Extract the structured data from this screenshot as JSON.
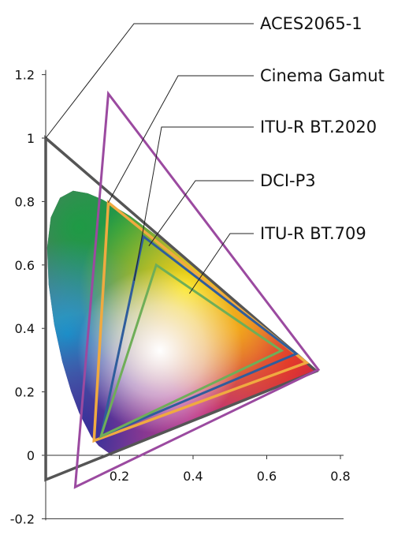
{
  "chart_data": {
    "type": "scatter",
    "title": "",
    "xlabel": "",
    "ylabel": "",
    "xlim": [
      0,
      0.8
    ],
    "ylim": [
      -0.2,
      1.2
    ],
    "x_ticks": [
      {
        "value": 0.2,
        "label": "0.2"
      },
      {
        "value": 0.4,
        "label": "0.4"
      },
      {
        "value": 0.6,
        "label": "0.6"
      },
      {
        "value": 0.8,
        "label": "0.8"
      }
    ],
    "y_ticks": [
      {
        "value": -0.2,
        "label": "-0.2"
      },
      {
        "value": 0,
        "label": "0"
      },
      {
        "value": 0.2,
        "label": "0.2"
      },
      {
        "value": 0.4,
        "label": "0.4"
      },
      {
        "value": 0.6,
        "label": "0.6"
      },
      {
        "value": 0.8,
        "label": "0.8"
      },
      {
        "value": 1,
        "label": "1"
      },
      {
        "value": 1.2,
        "label": "1.2"
      }
    ],
    "locus": [
      [
        0.1741,
        0.005
      ],
      [
        0.144,
        0.03
      ],
      [
        0.124,
        0.058
      ],
      [
        0.091,
        0.133
      ],
      [
        0.069,
        0.201
      ],
      [
        0.045,
        0.295
      ],
      [
        0.023,
        0.413
      ],
      [
        0.008,
        0.538
      ],
      [
        0.0039,
        0.655
      ],
      [
        0.0139,
        0.75
      ],
      [
        0.0389,
        0.812
      ],
      [
        0.0743,
        0.834
      ],
      [
        0.1142,
        0.826
      ],
      [
        0.1547,
        0.806
      ],
      [
        0.2296,
        0.754
      ],
      [
        0.3016,
        0.692
      ],
      [
        0.3731,
        0.625
      ],
      [
        0.4441,
        0.555
      ],
      [
        0.5125,
        0.487
      ],
      [
        0.5752,
        0.424
      ],
      [
        0.627,
        0.372
      ],
      [
        0.6658,
        0.334
      ],
      [
        0.6915,
        0.308
      ],
      [
        0.7079,
        0.292
      ],
      [
        0.719,
        0.281
      ],
      [
        0.7347,
        0.2653
      ]
    ],
    "series": [
      {
        "name": "ACES2065-1",
        "color": "#555555",
        "primaries": [
          [
            0.7347,
            0.2653
          ],
          [
            0.0,
            1.0
          ],
          [
            0.0001,
            -0.077
          ]
        ]
      },
      {
        "name": "Cinema Gamut",
        "color": "#9b4aa0",
        "primaries": [
          [
            0.74,
            0.27
          ],
          [
            0.17,
            1.14
          ],
          [
            0.08,
            -0.1
          ]
        ]
      },
      {
        "name": "ITU-R BT.2020",
        "color": "#f0aa40",
        "primaries": [
          [
            0.708,
            0.292
          ],
          [
            0.17,
            0.797
          ],
          [
            0.131,
            0.046
          ]
        ]
      },
      {
        "name": "DCI-P3",
        "color": "#2f5d9c",
        "primaries": [
          [
            0.68,
            0.32
          ],
          [
            0.265,
            0.69
          ],
          [
            0.15,
            0.06
          ]
        ]
      },
      {
        "name": "ITU-R BT.709",
        "color": "#6fae58",
        "primaries": [
          [
            0.64,
            0.33
          ],
          [
            0.3,
            0.6
          ],
          [
            0.15,
            0.06
          ]
        ]
      }
    ]
  }
}
